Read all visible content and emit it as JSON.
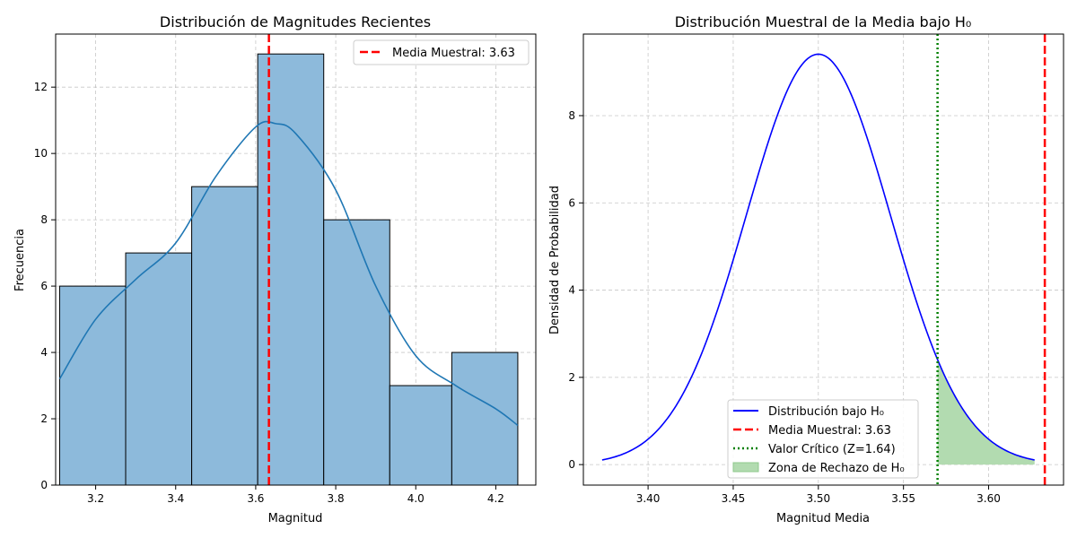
{
  "chart_data": [
    {
      "type": "bar",
      "title": "Distribución de Magnitudes Recientes",
      "xlabel": "Magnitud",
      "ylabel": "Frecuencia",
      "xlim": [
        3.1,
        4.3
      ],
      "ylim": [
        0,
        13.6
      ],
      "xticks": [
        "3.2",
        "3.4",
        "3.6",
        "3.8",
        "4.0",
        "4.2"
      ],
      "yticks": [
        "0",
        "2",
        "4",
        "6",
        "8",
        "10",
        "12"
      ],
      "grid": true,
      "legend_position": "top-right",
      "bins": [
        {
          "start": 3.11,
          "end": 3.275,
          "count": 6
        },
        {
          "start": 3.275,
          "end": 3.44,
          "count": 7
        },
        {
          "start": 3.44,
          "end": 3.605,
          "count": 9
        },
        {
          "start": 3.605,
          "end": 3.77,
          "count": 13
        },
        {
          "start": 3.77,
          "end": 3.935,
          "count": 8
        },
        {
          "start": 3.935,
          "end": 4.09,
          "count": 3
        },
        {
          "start": 4.09,
          "end": 4.255,
          "count": 4
        }
      ],
      "kde": {
        "x": [
          3.11,
          3.2,
          3.3,
          3.4,
          3.5,
          3.6,
          3.65,
          3.7,
          3.8,
          3.9,
          4.0,
          4.1,
          4.2,
          4.255
        ],
        "y": [
          3.2,
          5.0,
          6.2,
          7.3,
          9.3,
          10.8,
          10.9,
          10.6,
          8.9,
          6.0,
          3.9,
          3.0,
          2.3,
          1.8
        ]
      },
      "reference_line": {
        "label": "Media Muestral: 3.63",
        "x": 3.633
      },
      "colors": {
        "bar": "#8dbadb",
        "bar_edge": "#000000",
        "kde": "#1f77b4",
        "mean": "#ff0000"
      }
    },
    {
      "type": "line",
      "title": "Distribución Muestral de la Media bajo H₀",
      "xlabel": "Magnitud Media",
      "ylabel": "Densidad de Probabilidad",
      "xlim": [
        3.362,
        3.644
      ],
      "ylim": [
        -0.47,
        9.87
      ],
      "xticks": [
        "3.40",
        "3.45",
        "3.50",
        "3.55",
        "3.60"
      ],
      "yticks": [
        "0",
        "2",
        "4",
        "6",
        "8"
      ],
      "grid": true,
      "legend_position": "lower-center",
      "mean": 3.5,
      "std_error": 0.0424,
      "x_range": [
        3.373,
        3.627
      ],
      "critical_value": 3.57,
      "sample_mean": 3.633,
      "legend": [
        {
          "label": "Distribución bajo H₀",
          "style": "solid",
          "color": "#0000ff"
        },
        {
          "label": "Media Muestral: 3.63",
          "style": "dashed",
          "color": "#ff0000"
        },
        {
          "label": "Valor Crítico (Z=1.64)",
          "style": "dotted",
          "color": "#008000"
        },
        {
          "label": "Zona de Rechazo de H₀",
          "style": "fill",
          "color": "#b2dbb0"
        }
      ]
    }
  ]
}
